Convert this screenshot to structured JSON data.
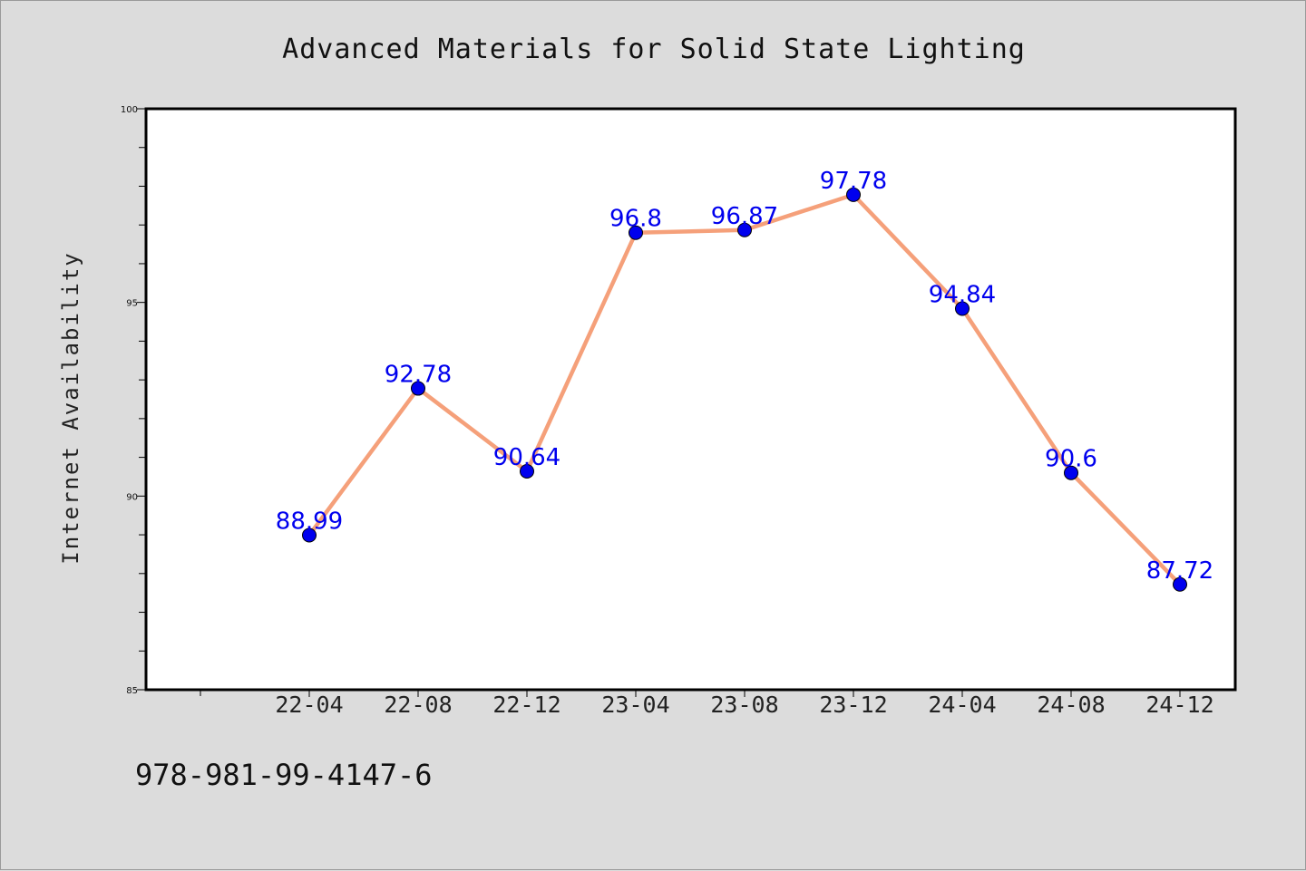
{
  "chart_data": {
    "type": "line",
    "title": "Advanced Materials for Solid State Lighting",
    "xlabel": "",
    "ylabel": "Internet Availability",
    "categories": [
      "22-04",
      "22-08",
      "22-12",
      "23-04",
      "23-08",
      "23-12",
      "24-04",
      "24-08",
      "24-12"
    ],
    "series": [
      {
        "values": [
          88.99,
          92.78,
          90.64,
          96.8,
          96.87,
          97.78,
          94.84,
          90.6,
          87.72
        ],
        "data_labels": [
          "88.99",
          "92.78",
          "90.64",
          "96.8",
          "96.87",
          "97.78",
          "94.84",
          "90.6",
          "87.72"
        ],
        "line_color": "#f5a07a",
        "marker_color": "#0000ee",
        "label_color": "#0000ee"
      }
    ],
    "ylim": [
      85,
      100
    ],
    "yticks": [
      85,
      90,
      95,
      100
    ],
    "grid": false,
    "legend": "none"
  },
  "footer": {
    "isbn": "978-981-99-4147-6"
  },
  "colors": {
    "background": "#dcdcdc",
    "plot_background": "#ffffff",
    "axis": "#000000"
  }
}
